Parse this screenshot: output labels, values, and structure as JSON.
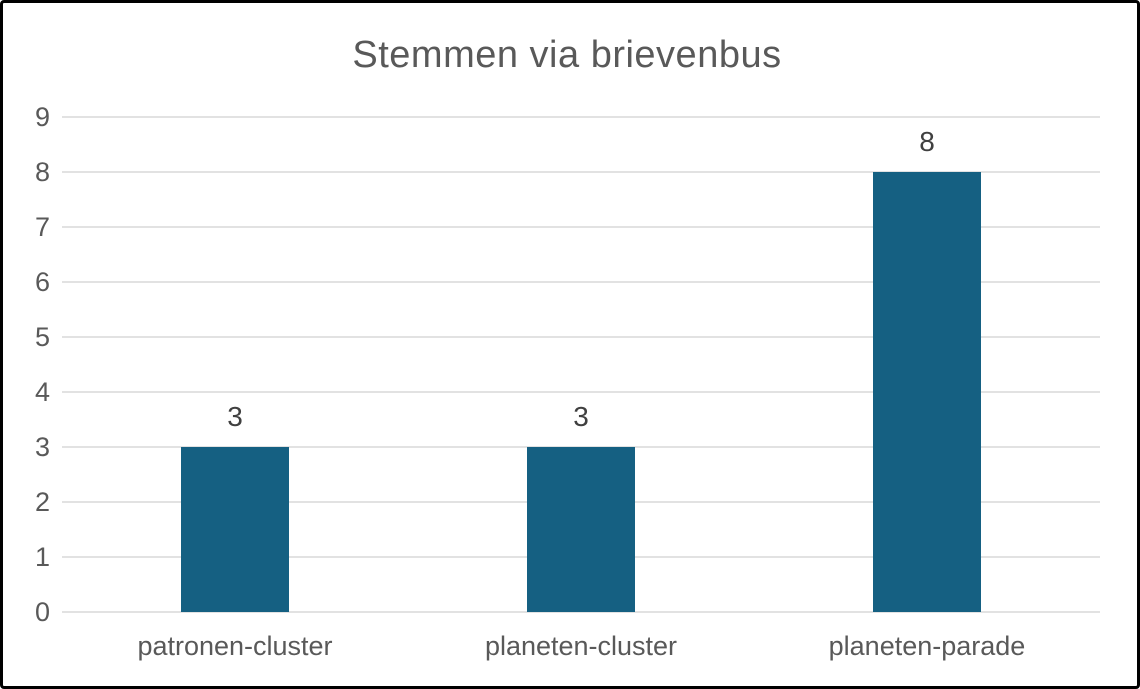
{
  "chart_data": {
    "type": "bar",
    "title": "Stemmen via brievenbus",
    "categories": [
      "patronen-cluster",
      "planeten-cluster",
      "planeten-parade"
    ],
    "values": [
      3,
      3,
      8
    ],
    "data_labels": [
      "3",
      "3",
      "8"
    ],
    "xlabel": "",
    "ylabel": "",
    "ylim": [
      0,
      9
    ],
    "yticks": [
      0,
      1,
      2,
      3,
      4,
      5,
      6,
      7,
      8,
      9
    ],
    "grid": "horizontal",
    "legend_position": "none",
    "colors": {
      "bar_fill": "#156082",
      "title_text": "#595959",
      "axis_text": "#595959",
      "data_label_text": "#404040",
      "gridline": "#E2E2E2",
      "background": "#FFFFFF",
      "frame_border": "#000000"
    }
  }
}
